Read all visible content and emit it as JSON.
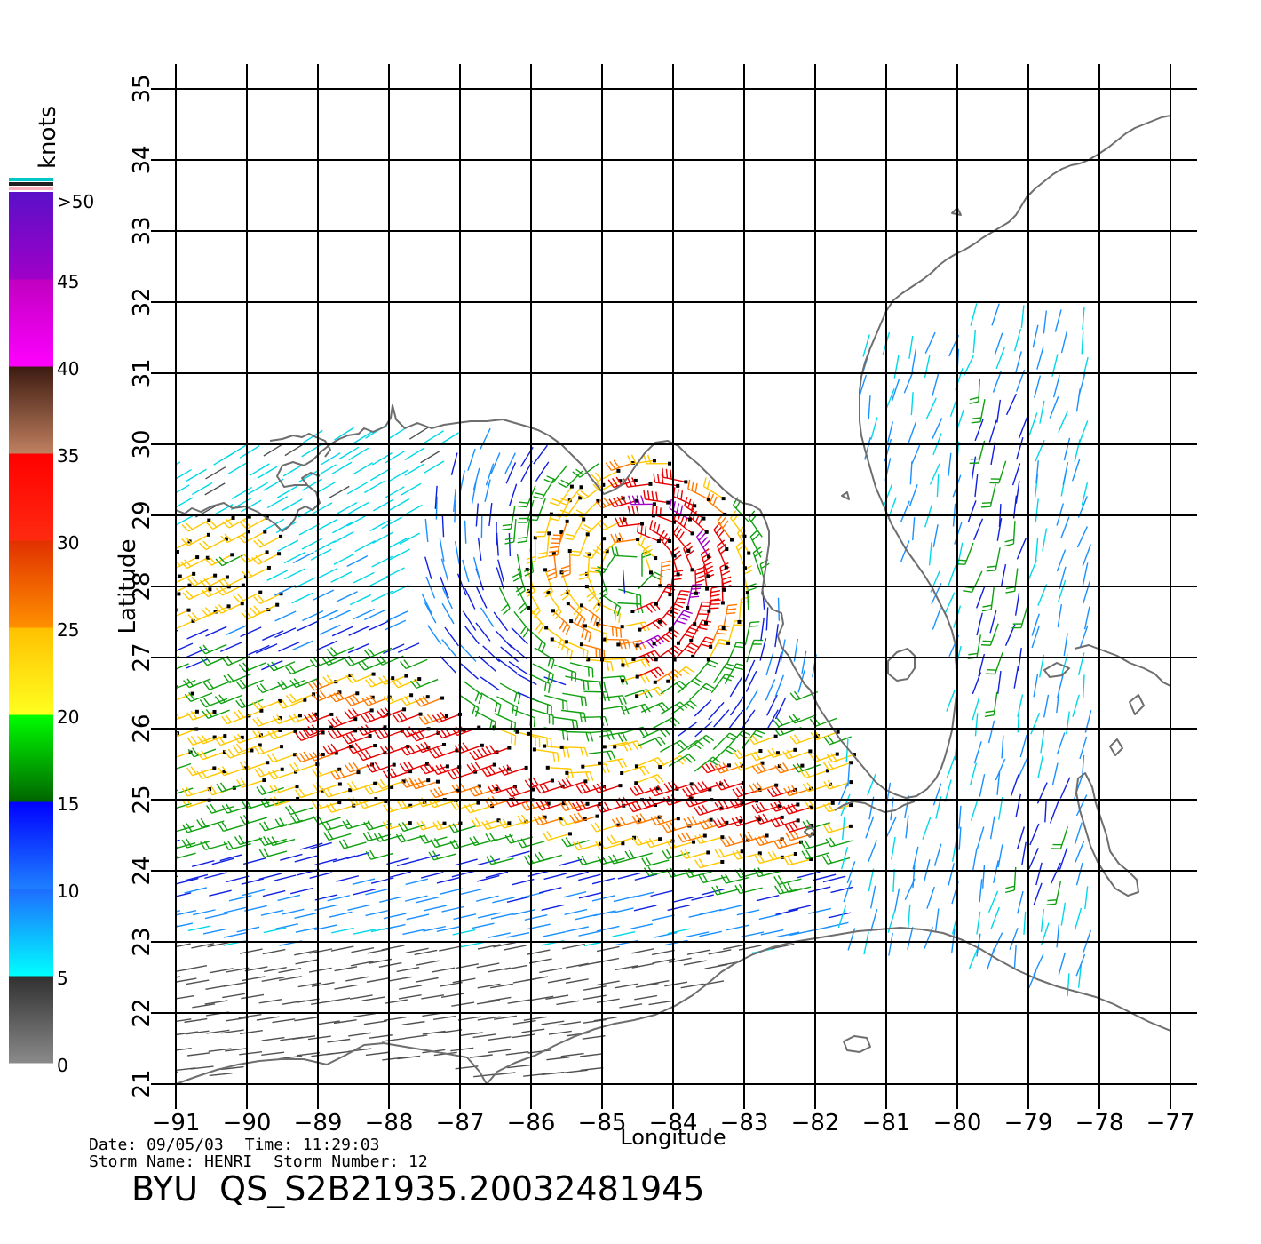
{
  "map": {
    "xlabel": "Longitude",
    "ylabel": "Latitude",
    "lon_range": [
      -91,
      -77
    ],
    "lat_range": [
      21,
      35
    ],
    "lon_ticks": [
      "-91",
      "-90",
      "-89",
      "-88",
      "-87",
      "-86",
      "-85",
      "-84",
      "-83",
      "-82",
      "-81",
      "-80",
      "-79",
      "-78",
      "-77"
    ],
    "lat_ticks": [
      "21",
      "22",
      "23",
      "24",
      "25",
      "26",
      "27",
      "28",
      "29",
      "30",
      "31",
      "32",
      "33",
      "34",
      "35"
    ],
    "grid": true,
    "coastline_color": "#6e6e6e",
    "storm_center": {
      "lon": -84.6,
      "lat": 28.2
    }
  },
  "colorbar": {
    "title": "knots",
    "labels": [
      ">50",
      "45",
      "40",
      "35",
      "30",
      "25",
      "20",
      "15",
      "10",
      "5",
      "0"
    ],
    "bands": [
      {
        "min": 0,
        "max": 5,
        "top": "#303030",
        "bottom": "#8a8a8a"
      },
      {
        "min": 5,
        "max": 10,
        "top": "#1e6bff",
        "bottom": "#00ffff"
      },
      {
        "min": 10,
        "max": 15,
        "top": "#0000ff",
        "bottom": "#1e80ff"
      },
      {
        "min": 15,
        "max": 20,
        "top": "#00ff00",
        "bottom": "#006400"
      },
      {
        "min": 20,
        "max": 25,
        "top": "#ffc000",
        "bottom": "#ffff20"
      },
      {
        "min": 25,
        "max": 30,
        "top": "#e03000",
        "bottom": "#ff9000"
      },
      {
        "min": 30,
        "max": 35,
        "top": "#ff0000",
        "bottom": "#ff2a10"
      },
      {
        "min": 35,
        "max": 40,
        "top": "#3c1a10",
        "bottom": "#c08060"
      },
      {
        "min": 40,
        "max": 45,
        "top": "#c000c0",
        "bottom": "#ff00ff"
      },
      {
        "min": 45,
        "max": 50,
        "top": "#5a10c8",
        "bottom": "#a000c8"
      }
    ],
    "cap_colors": [
      "#00c8c8",
      "#202020",
      "#ffb0c0"
    ]
  },
  "footer": {
    "date_label": "Date:",
    "date_value": "09/05/03",
    "time_label": "Time:",
    "time_value": "11:29:03",
    "storm_name_label": "Storm Name:",
    "storm_name_value": "HENRI",
    "storm_number_label": "Storm Number:",
    "storm_number_value": "12",
    "title": "BYU  QS_S2B21935.20032481945"
  },
  "chart_data": {
    "type": "other",
    "description_kind": "scatterometer wind barbs",
    "xlabel": "Longitude",
    "ylabel": "Latitude",
    "xlim": [
      -91,
      -77
    ],
    "ylim": [
      21,
      35
    ]
  }
}
